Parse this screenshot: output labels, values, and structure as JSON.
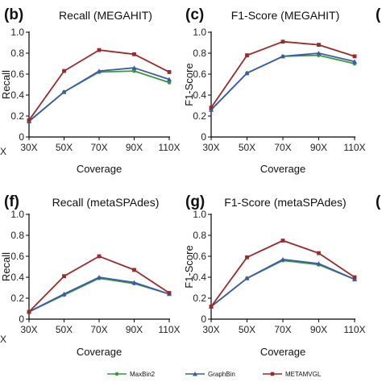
{
  "chart_data": [
    {
      "panel": "(b)",
      "type": "line",
      "title": "Recall (MEGAHIT)",
      "xlabel": "Coverage",
      "ylabel": "Recall",
      "categories": [
        "30X",
        "50X",
        "70X",
        "90X",
        "110X"
      ],
      "ylim": [
        0,
        1.0
      ],
      "yticks": [
        "0",
        "0.2",
        "0.4",
        "0.6",
        "0.8",
        "1.0"
      ],
      "series": [
        {
          "name": "MaxBin2",
          "values": [
            0.15,
            0.43,
            0.62,
            0.63,
            0.52
          ]
        },
        {
          "name": "GraphBin",
          "values": [
            0.15,
            0.43,
            0.63,
            0.66,
            0.55
          ]
        },
        {
          "name": "METAMVGL",
          "values": [
            0.16,
            0.63,
            0.83,
            0.79,
            0.62
          ]
        }
      ]
    },
    {
      "panel": "(c)",
      "type": "line",
      "title": "F1-Score (MEGAHIT)",
      "xlabel": "Coverage",
      "ylabel": "F1-Score",
      "categories": [
        "30X",
        "50X",
        "70X",
        "90X",
        "110X"
      ],
      "ylim": [
        0,
        1.0
      ],
      "yticks": [
        "0",
        "0.2",
        "0.4",
        "0.6",
        "0.8",
        "1.0"
      ],
      "series": [
        {
          "name": "MaxBin2",
          "values": [
            0.26,
            0.61,
            0.77,
            0.78,
            0.7
          ]
        },
        {
          "name": "GraphBin",
          "values": [
            0.26,
            0.61,
            0.77,
            0.8,
            0.72
          ]
        },
        {
          "name": "METAMVGL",
          "values": [
            0.28,
            0.78,
            0.91,
            0.88,
            0.77
          ]
        }
      ]
    },
    {
      "panel": "(f)",
      "type": "line",
      "title": "Recall (metaSPAdes)",
      "xlabel": "Coverage",
      "ylabel": "Recall",
      "categories": [
        "30X",
        "50X",
        "70X",
        "90X",
        "110X"
      ],
      "ylim": [
        0,
        1.0
      ],
      "yticks": [
        "0",
        "0.2",
        "0.4",
        "0.6",
        "0.8",
        "1.0"
      ],
      "series": [
        {
          "name": "MaxBin2",
          "values": [
            0.07,
            0.23,
            0.39,
            0.34,
            0.24
          ]
        },
        {
          "name": "GraphBin",
          "values": [
            0.07,
            0.24,
            0.4,
            0.35,
            0.24
          ]
        },
        {
          "name": "METAMVGL",
          "values": [
            0.07,
            0.41,
            0.6,
            0.47,
            0.25
          ]
        }
      ]
    },
    {
      "panel": "(g)",
      "type": "line",
      "title": "F1-Score (metaSPAdes)",
      "xlabel": "Coverage",
      "ylabel": "F1-Score",
      "categories": [
        "30X",
        "50X",
        "70X",
        "90X",
        "110X"
      ],
      "ylim": [
        0,
        1.0
      ],
      "yticks": [
        "0",
        "0.2",
        "0.4",
        "0.6",
        "0.8",
        "1.0"
      ],
      "series": [
        {
          "name": "MaxBin2",
          "values": [
            0.12,
            0.39,
            0.56,
            0.52,
            0.38
          ]
        },
        {
          "name": "GraphBin",
          "values": [
            0.12,
            0.39,
            0.57,
            0.53,
            0.38
          ]
        },
        {
          "name": "METAMVGL",
          "values": [
            0.12,
            0.59,
            0.75,
            0.63,
            0.4
          ]
        }
      ]
    }
  ],
  "legend": {
    "placement": "bottom",
    "items": [
      {
        "name": "MaxBin2",
        "color": "#3a9a3a",
        "marker": "circle"
      },
      {
        "name": "GraphBin",
        "color": "#3b5ba8",
        "marker": "triangle"
      },
      {
        "name": "METAMVGL",
        "color": "#9b2b2b",
        "marker": "square"
      }
    ]
  },
  "colors": {
    "MaxBin2": "#3a9a3a",
    "GraphBin": "#3b5ba8",
    "METAMVGL": "#9b2b2b"
  },
  "edge_fragments": {
    "left_top": "X",
    "left_bottom": "X",
    "right_top": "(",
    "right_bottom": "("
  }
}
